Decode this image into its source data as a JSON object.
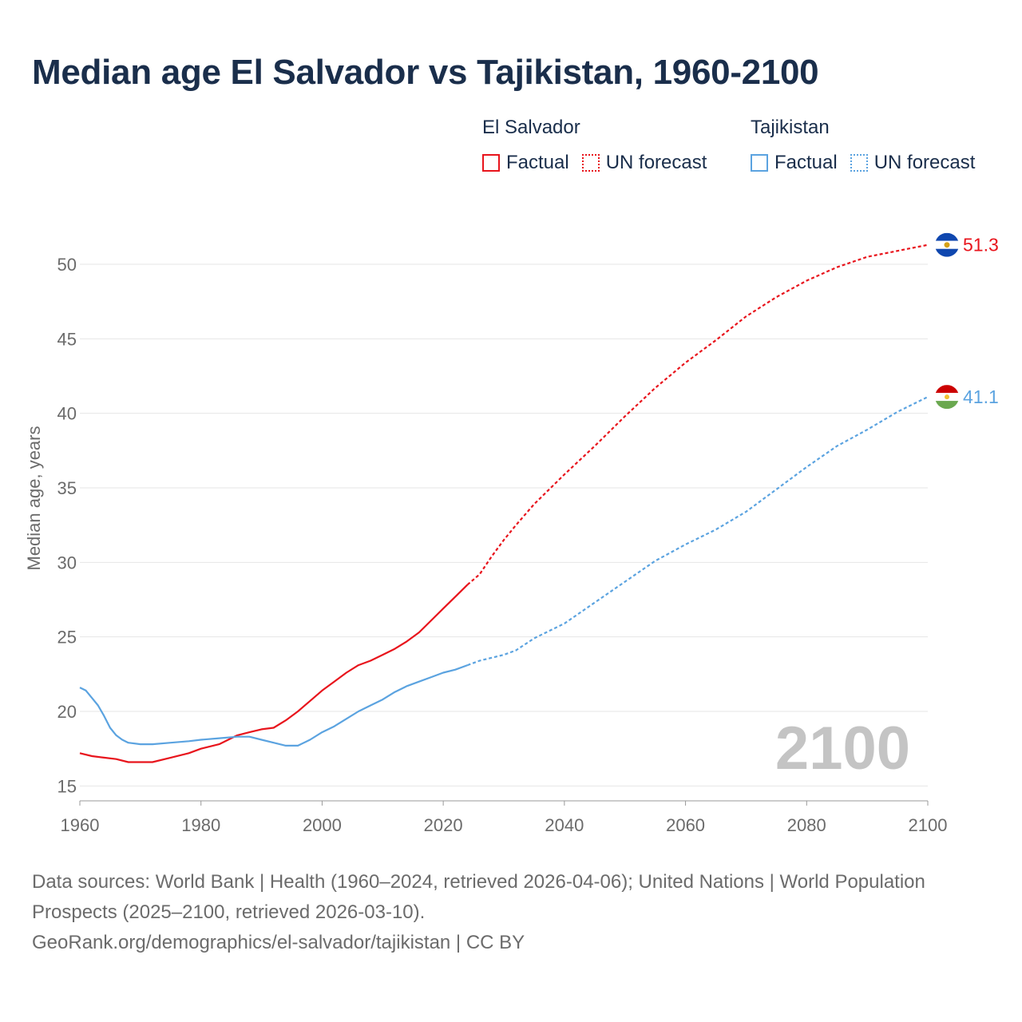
{
  "title": "Median age El Salvador vs Tajikistan, 1960-2100",
  "legend": {
    "groups": [
      {
        "country": "El Salvador",
        "factual": "Factual",
        "forecast": "UN forecast",
        "color": "#e8141c"
      },
      {
        "country": "Tajikistan",
        "factual": "Factual",
        "forecast": "UN forecast",
        "color": "#5ba3e0"
      }
    ]
  },
  "year_watermark": "2100",
  "footer": {
    "sources": "Data sources: World Bank | Health (1960–2024, retrieved 2026-04-06); United Nations | World Population Prospects (2025–2100, retrieved 2026-03-10).",
    "credit": "GeoRank.org/demographics/el-salvador/tajikistan | CC BY"
  },
  "chart_data": {
    "type": "line",
    "title": "Median age El Salvador vs Tajikistan, 1960-2100",
    "xlabel": "",
    "ylabel": "Median age, years",
    "xlim": [
      1960,
      2100
    ],
    "ylim": [
      14,
      53
    ],
    "x_ticks": [
      1960,
      1980,
      2000,
      2020,
      2040,
      2060,
      2080,
      2100
    ],
    "y_ticks": [
      15,
      20,
      25,
      30,
      35,
      40,
      45,
      50
    ],
    "grid": true,
    "factual_end_year": 2024,
    "series": [
      {
        "name": "El Salvador",
        "color": "#e8141c",
        "end_label": "51.3",
        "points": [
          [
            1960,
            17.2
          ],
          [
            1962,
            17.0
          ],
          [
            1964,
            16.9
          ],
          [
            1966,
            16.8
          ],
          [
            1968,
            16.6
          ],
          [
            1970,
            16.6
          ],
          [
            1972,
            16.6
          ],
          [
            1975,
            16.9
          ],
          [
            1978,
            17.2
          ],
          [
            1980,
            17.5
          ],
          [
            1983,
            17.8
          ],
          [
            1986,
            18.4
          ],
          [
            1988,
            18.6
          ],
          [
            1990,
            18.8
          ],
          [
            1992,
            18.9
          ],
          [
            1994,
            19.4
          ],
          [
            1996,
            20.0
          ],
          [
            1998,
            20.7
          ],
          [
            2000,
            21.4
          ],
          [
            2002,
            22.0
          ],
          [
            2004,
            22.6
          ],
          [
            2006,
            23.1
          ],
          [
            2008,
            23.4
          ],
          [
            2010,
            23.8
          ],
          [
            2012,
            24.2
          ],
          [
            2014,
            24.7
          ],
          [
            2016,
            25.3
          ],
          [
            2018,
            26.1
          ],
          [
            2020,
            26.9
          ],
          [
            2022,
            27.7
          ],
          [
            2024,
            28.5
          ],
          [
            2026,
            29.2
          ],
          [
            2028,
            30.4
          ],
          [
            2030,
            31.5
          ],
          [
            2032,
            32.5
          ],
          [
            2035,
            33.9
          ],
          [
            2038,
            35.1
          ],
          [
            2040,
            35.9
          ],
          [
            2045,
            37.8
          ],
          [
            2050,
            39.8
          ],
          [
            2055,
            41.7
          ],
          [
            2060,
            43.4
          ],
          [
            2065,
            44.9
          ],
          [
            2070,
            46.5
          ],
          [
            2075,
            47.8
          ],
          [
            2080,
            48.9
          ],
          [
            2085,
            49.8
          ],
          [
            2090,
            50.5
          ],
          [
            2095,
            50.9
          ],
          [
            2100,
            51.3
          ]
        ]
      },
      {
        "name": "Tajikistan",
        "color": "#5ba3e0",
        "end_label": "41.1",
        "points": [
          [
            1960,
            21.6
          ],
          [
            1961,
            21.4
          ],
          [
            1962,
            20.9
          ],
          [
            1963,
            20.4
          ],
          [
            1964,
            19.7
          ],
          [
            1965,
            18.9
          ],
          [
            1966,
            18.4
          ],
          [
            1967,
            18.1
          ],
          [
            1968,
            17.9
          ],
          [
            1970,
            17.8
          ],
          [
            1972,
            17.8
          ],
          [
            1975,
            17.9
          ],
          [
            1978,
            18.0
          ],
          [
            1980,
            18.1
          ],
          [
            1983,
            18.2
          ],
          [
            1986,
            18.3
          ],
          [
            1988,
            18.3
          ],
          [
            1990,
            18.1
          ],
          [
            1992,
            17.9
          ],
          [
            1994,
            17.7
          ],
          [
            1996,
            17.7
          ],
          [
            1998,
            18.1
          ],
          [
            2000,
            18.6
          ],
          [
            2002,
            19.0
          ],
          [
            2004,
            19.5
          ],
          [
            2006,
            20.0
          ],
          [
            2008,
            20.4
          ],
          [
            2010,
            20.8
          ],
          [
            2012,
            21.3
          ],
          [
            2014,
            21.7
          ],
          [
            2016,
            22.0
          ],
          [
            2018,
            22.3
          ],
          [
            2020,
            22.6
          ],
          [
            2022,
            22.8
          ],
          [
            2024,
            23.1
          ],
          [
            2026,
            23.4
          ],
          [
            2028,
            23.6
          ],
          [
            2030,
            23.8
          ],
          [
            2032,
            24.1
          ],
          [
            2035,
            24.9
          ],
          [
            2038,
            25.5
          ],
          [
            2040,
            25.9
          ],
          [
            2045,
            27.3
          ],
          [
            2050,
            28.7
          ],
          [
            2055,
            30.1
          ],
          [
            2060,
            31.2
          ],
          [
            2065,
            32.2
          ],
          [
            2070,
            33.4
          ],
          [
            2075,
            34.9
          ],
          [
            2080,
            36.4
          ],
          [
            2085,
            37.8
          ],
          [
            2090,
            38.9
          ],
          [
            2095,
            40.1
          ],
          [
            2100,
            41.1
          ]
        ]
      }
    ]
  }
}
